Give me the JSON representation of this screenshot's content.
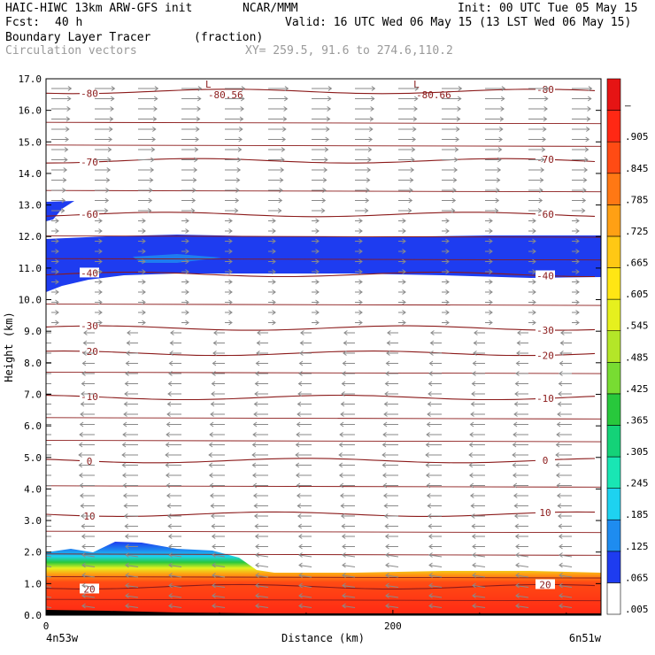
{
  "header": {
    "model": "HAIC-HIWC 13km ARW-GFS init",
    "org": "NCAR/MMM",
    "init": "Init: 00 UTC Tue 05 May 15",
    "fcst_label": "Fcst:",
    "fcst_value": "40 h",
    "valid": "Valid: 16 UTC Wed 06 May 15 (13 LST Wed 06 May 15)",
    "field": "Boundary Layer Tracer",
    "units": "(fraction)",
    "vectors": "Circulation vectors",
    "xy": "XY= 259.5, 91.6 to 274.6,110.2"
  },
  "colors": {
    "contour": "#8b1a1a",
    "vector": "#8a8a8a",
    "tracer_blue": "#1e3cf0"
  },
  "chart_data": {
    "type": "heatmap",
    "ylabel": "Height (km)",
    "xlabel": "Distance (km)",
    "xlim": [
      0,
      320
    ],
    "ylim": [
      0.0,
      17.0
    ],
    "yticks": [
      0.0,
      1.0,
      2.0,
      3.0,
      4.0,
      5.0,
      6.0,
      7.0,
      8.0,
      9.0,
      10.0,
      11.0,
      12.0,
      13.0,
      14.0,
      15.0,
      16.0,
      17.0
    ],
    "xticks": [
      0,
      200
    ],
    "x_endpoints": [
      "4n53w",
      "6n51w"
    ],
    "colorbar": {
      "labels": [
        ".005",
        ".065",
        ".125",
        ".185",
        ".245",
        ".305",
        ".365",
        ".425",
        ".485",
        ".545",
        ".605",
        ".665",
        ".725",
        ".785",
        ".845",
        ".905",
        "–"
      ],
      "colors": [
        "#ffffff",
        "#1e3cf0",
        "#1e8cf0",
        "#1ed2f0",
        "#19e6b4",
        "#14d278",
        "#28c83c",
        "#78dc32",
        "#b4e628",
        "#e6f01e",
        "#ffe614",
        "#ffc814",
        "#ffa014",
        "#ff7814",
        "#ff4b14",
        "#ff2814",
        "#e61414"
      ]
    },
    "temperature_contours": [
      {
        "label": "-80",
        "height": 16.6
      },
      {
        "label": "-70",
        "height": 14.4
      },
      {
        "label": "-60",
        "height": 12.7
      },
      {
        "label": "-40",
        "height": 10.8
      },
      {
        "label": "-30",
        "height": 9.1
      },
      {
        "label": "-20",
        "height": 8.3
      },
      {
        "label": "-10",
        "height": 6.9
      },
      {
        "label": "0",
        "height": 4.9
      },
      {
        "label": "10",
        "height": 3.2
      },
      {
        "label": "20",
        "height": 0.9
      }
    ],
    "low_labels": [
      {
        "symbol": "L",
        "value": "-80.56",
        "x": 100
      },
      {
        "symbol": "L",
        "value": "-80.66",
        "x": 220
      }
    ],
    "tracer_layers": [
      {
        "name": "upper tracer layer",
        "bottom_km": 10.7,
        "top_km": 11.9
      },
      {
        "name": "boundary layer top",
        "height_km": 1.9
      }
    ]
  }
}
